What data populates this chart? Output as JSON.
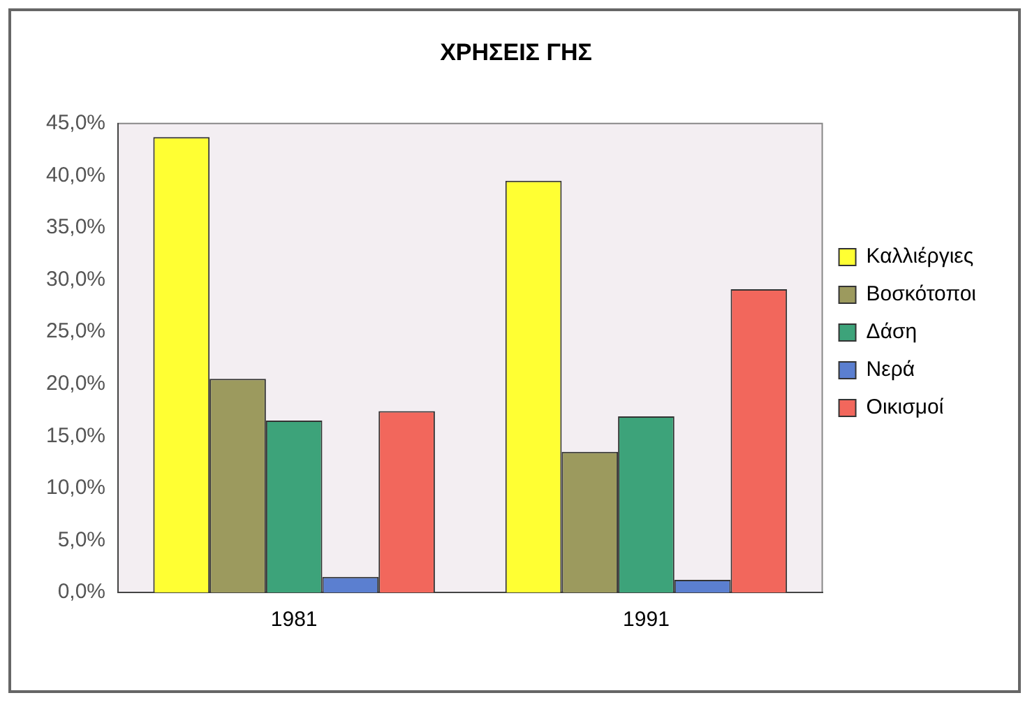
{
  "chart_data": {
    "type": "bar",
    "title": "ΧΡΗΣΕΙΣ ΓΗΣ",
    "categories": [
      "1981",
      "1991"
    ],
    "series": [
      {
        "name": "Καλλιέργιες",
        "color": "#ffff33",
        "values": [
          43.7,
          39.5
        ]
      },
      {
        "name": "Βοσκότοποι",
        "color": "#9c9a5e",
        "values": [
          20.5,
          13.5
        ]
      },
      {
        "name": "Δάση",
        "color": "#3da37a",
        "values": [
          16.5,
          16.9
        ]
      },
      {
        "name": "Νερά",
        "color": "#5b7fd0",
        "values": [
          1.5,
          1.2
        ]
      },
      {
        "name": "Οικισμοί",
        "color": "#f2675c",
        "values": [
          17.4,
          29.1
        ]
      }
    ],
    "ylim": [
      0,
      45
    ],
    "yticks": [
      {
        "value": 0,
        "label": "0,0%"
      },
      {
        "value": 5,
        "label": "5,0%"
      },
      {
        "value": 10,
        "label": "10,0%"
      },
      {
        "value": 15,
        "label": "15,0%"
      },
      {
        "value": 20,
        "label": "20,0%"
      },
      {
        "value": 25,
        "label": "25,0%"
      },
      {
        "value": 30,
        "label": "30,0%"
      },
      {
        "value": 35,
        "label": "35,0%"
      },
      {
        "value": 40,
        "label": "40,0%"
      },
      {
        "value": 45,
        "label": "45,0%"
      }
    ],
    "grid": false,
    "legend": "right"
  }
}
